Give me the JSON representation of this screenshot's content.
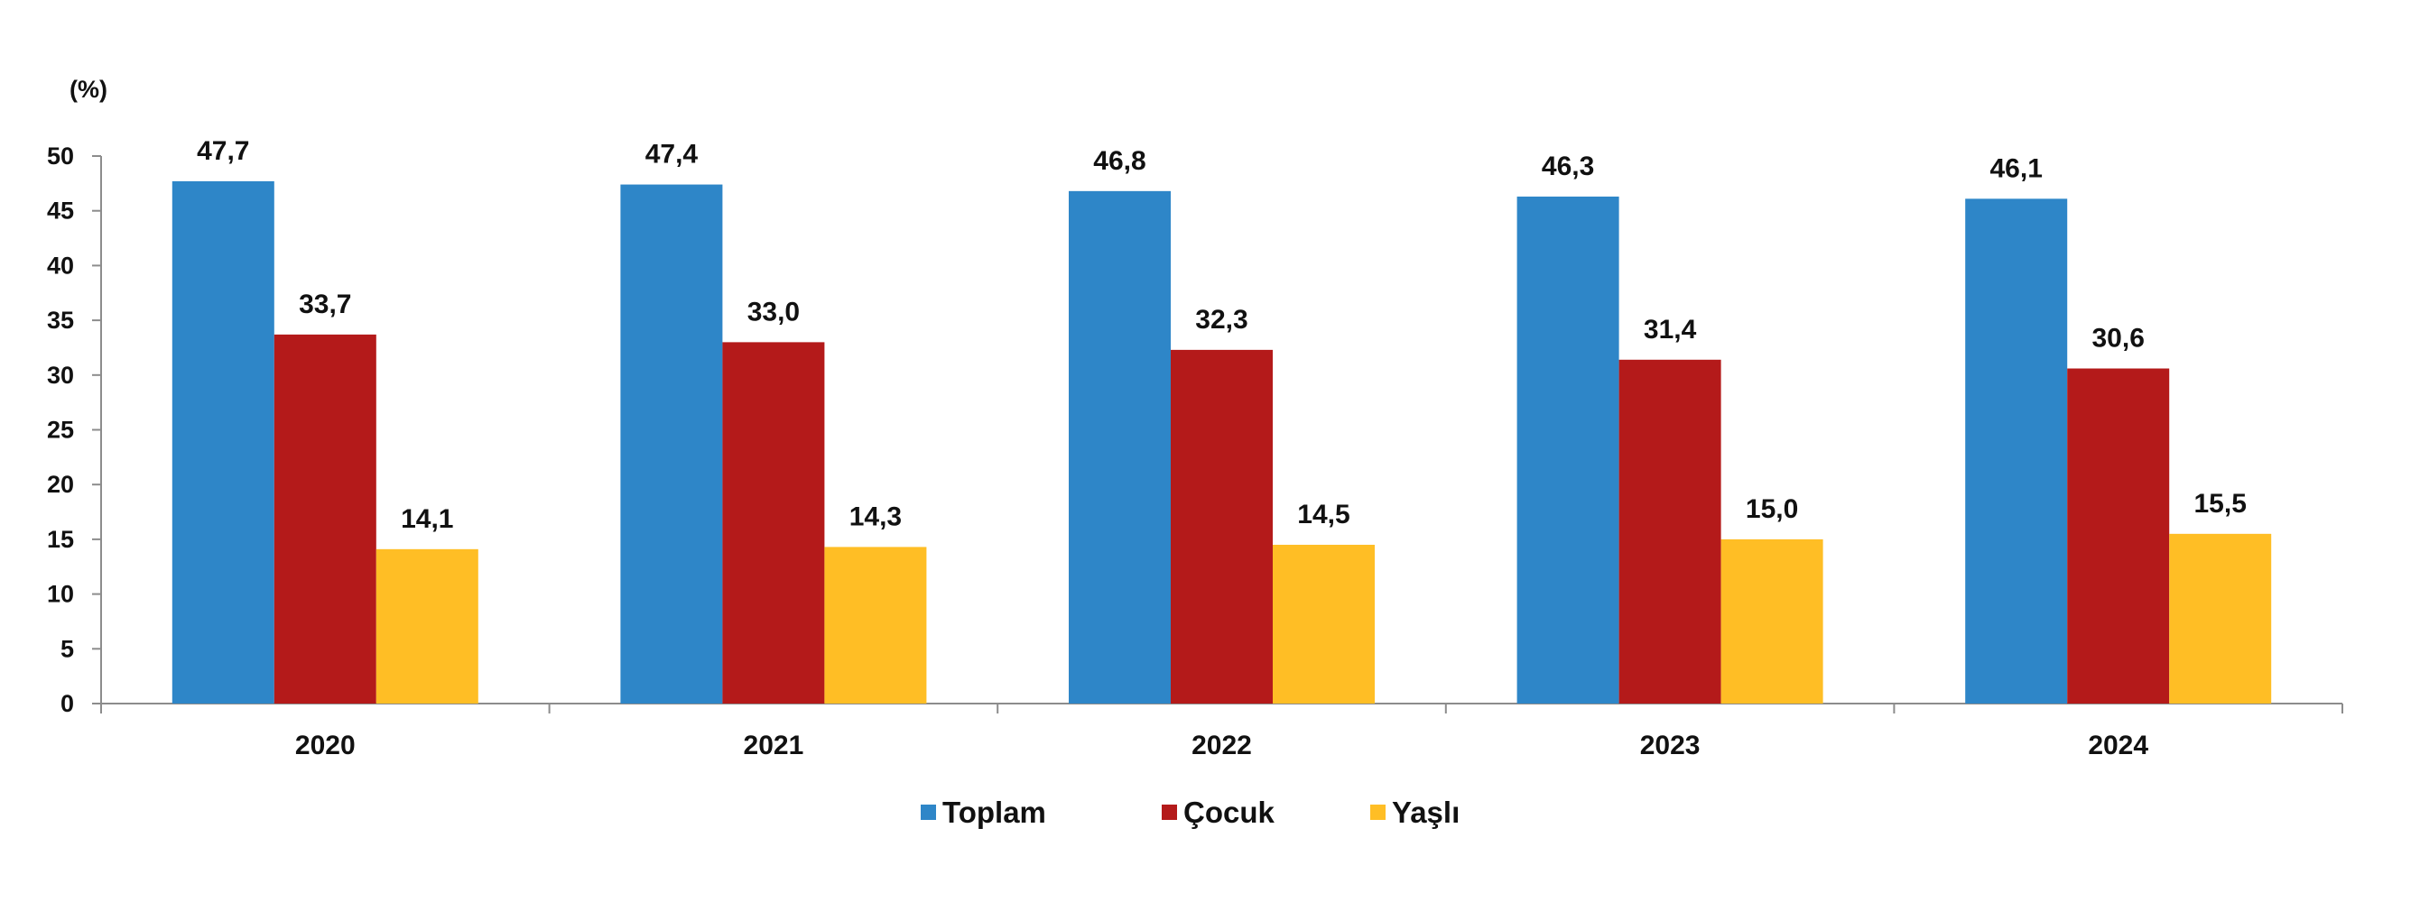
{
  "chart_data": {
    "type": "bar",
    "title": "",
    "xlabel": "",
    "ylabel": "(%)",
    "ylim": [
      0,
      50
    ],
    "yticks": [
      0,
      5,
      10,
      15,
      20,
      25,
      30,
      35,
      40,
      45,
      50
    ],
    "grid": false,
    "legend_position": "bottom",
    "categories": [
      "2020",
      "2021",
      "2022",
      "2023",
      "2024"
    ],
    "series": [
      {
        "name": "Toplam",
        "color": "#2E86C8",
        "values": [
          47.7,
          47.4,
          46.8,
          46.3,
          46.1
        ],
        "labels": [
          "47,7",
          "47,4",
          "46,8",
          "46,3",
          "46,1"
        ]
      },
      {
        "name": "Çocuk",
        "color": "#B41A1A",
        "values": [
          33.7,
          33.0,
          32.3,
          31.4,
          30.6
        ],
        "labels": [
          "33,7",
          "33,0",
          "32,3",
          "31,4",
          "30,6"
        ]
      },
      {
        "name": "Yaşlı",
        "color": "#FFBE25",
        "values": [
          14.1,
          14.3,
          14.5,
          15.0,
          15.5
        ],
        "labels": [
          "14,1",
          "14,3",
          "14,5",
          "15,0",
          "15,5"
        ]
      }
    ]
  }
}
